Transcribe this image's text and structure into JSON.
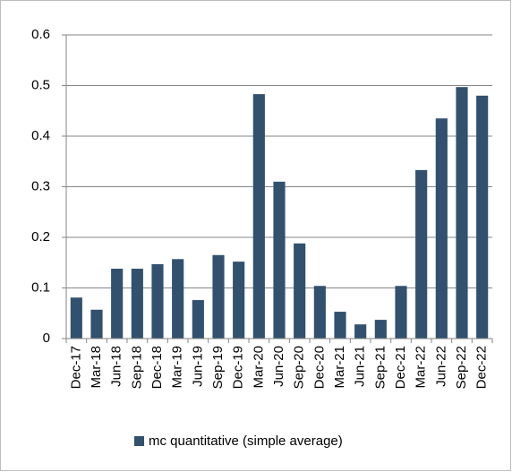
{
  "chart_data": {
    "type": "bar",
    "categories": [
      "Dec-17",
      "Mar-18",
      "Jun-18",
      "Sep-18",
      "Dec-18",
      "Mar-19",
      "Jun-19",
      "Sep-19",
      "Dec-19",
      "Mar-20",
      "Jun-20",
      "Sep-20",
      "Dec-20",
      "Mar-21",
      "Jun-21",
      "Sep-21",
      "Dec-21",
      "Mar-22",
      "Jun-22",
      "Sep-22",
      "Dec-22"
    ],
    "series": [
      {
        "name": "mc quantitative (simple average)",
        "color": "#31516e",
        "values": [
          0.081,
          0.057,
          0.138,
          0.138,
          0.147,
          0.157,
          0.076,
          0.165,
          0.152,
          0.483,
          0.31,
          0.188,
          0.104,
          0.053,
          0.028,
          0.037,
          0.104,
          0.333,
          0.435,
          0.497,
          0.48
        ]
      }
    ],
    "ylim": [
      0,
      0.6
    ],
    "yticks": [
      0,
      0.1,
      0.2,
      0.3,
      0.4,
      0.5,
      0.6
    ],
    "grid": true,
    "legend": "bottom"
  }
}
